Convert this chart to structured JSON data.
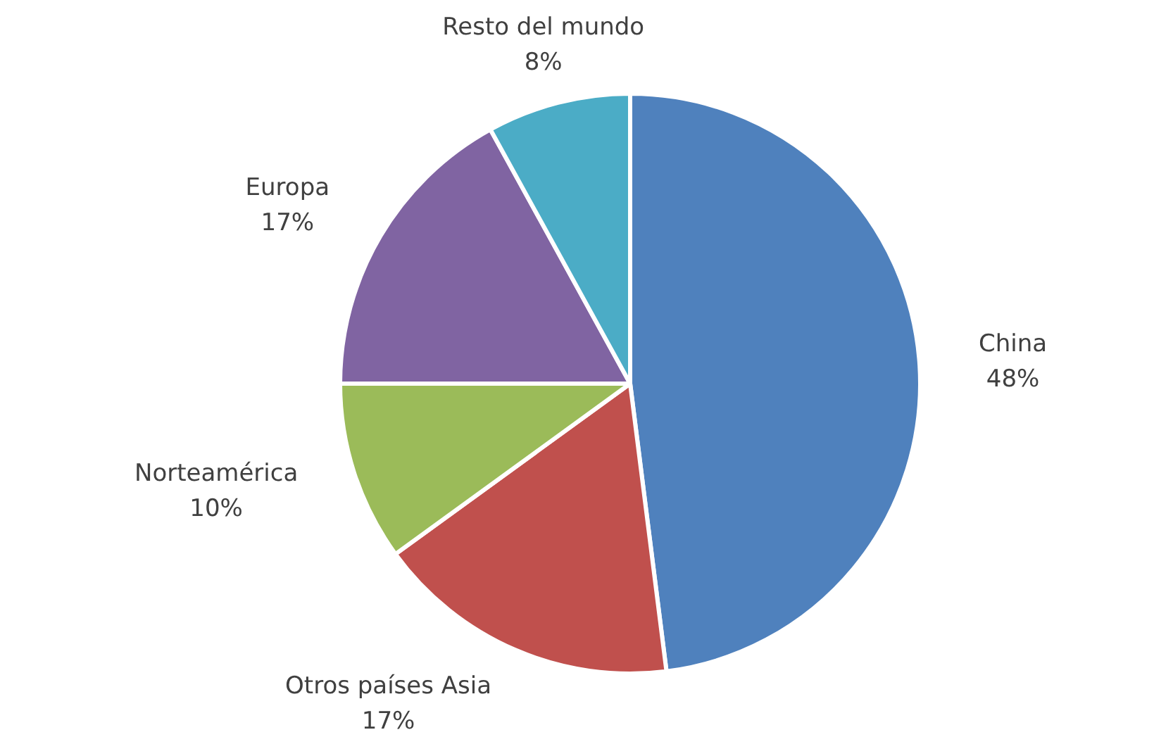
{
  "chart_data": {
    "type": "pie",
    "categories": [
      "China",
      "Otros países Asia",
      "Norteamérica",
      "Europa",
      "Resto del mundo"
    ],
    "values": [
      48,
      17,
      10,
      17,
      8
    ],
    "value_labels": [
      "48%",
      "17%",
      "10%",
      "17%",
      "8%"
    ],
    "colors": [
      "#4f81bd",
      "#c0504d",
      "#9bbb59",
      "#8064a2",
      "#4bacc6"
    ],
    "legend": false
  }
}
